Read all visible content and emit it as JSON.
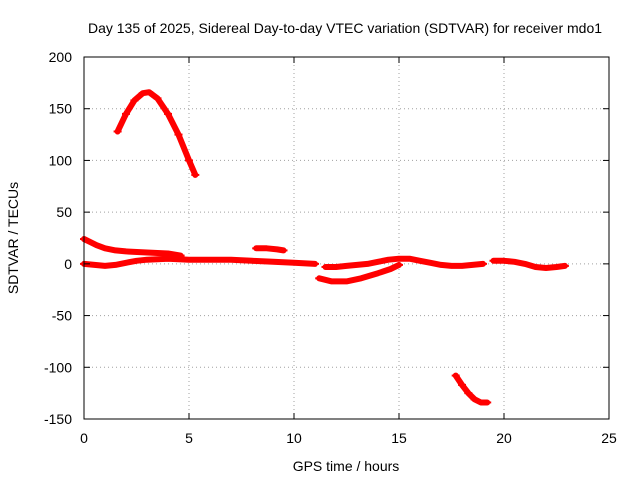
{
  "chart_data": {
    "type": "scatter",
    "title": "Day 135 of 2025, Sidereal Day-to-day VTEC variation (SDTVAR) for receiver mdo1",
    "xlabel": "GPS time / hours",
    "ylabel": "SDTVAR / TECUs",
    "xlim": [
      0,
      25
    ],
    "ylim": [
      -150,
      200
    ],
    "xticks": [
      0,
      5,
      10,
      15,
      20,
      25
    ],
    "yticks": [
      -150,
      -100,
      -50,
      0,
      50,
      100,
      150,
      200
    ],
    "grid": true,
    "legend": "none",
    "color": "#ff0000",
    "series": [
      {
        "name": "arc-1",
        "x": [
          1.6,
          2.0,
          2.4,
          2.8,
          3.1,
          3.5,
          4.0,
          4.5,
          5.0,
          5.3
        ],
        "y": [
          128,
          145,
          158,
          165,
          166,
          160,
          145,
          125,
          100,
          86
        ]
      },
      {
        "name": "arc-2",
        "x": [
          0.0,
          0.3,
          0.6,
          1.0,
          1.5,
          2.0,
          3.0,
          4.0,
          4.6
        ],
        "y": [
          24,
          21,
          18,
          15,
          13,
          12,
          11,
          10,
          8
        ]
      },
      {
        "name": "arc-3",
        "x": [
          0.0,
          0.5,
          1.0,
          1.5,
          2.0,
          2.5,
          3.0,
          4.0,
          5.0,
          6.0,
          7.0,
          8.0,
          9.0,
          10.0,
          11.0
        ],
        "y": [
          0,
          -1,
          -2,
          -1,
          1,
          3,
          4,
          5,
          4,
          4,
          4,
          3,
          2,
          1,
          0
        ]
      },
      {
        "name": "arc-4",
        "x": [
          8.2,
          8.7,
          9.2,
          9.5
        ],
        "y": [
          15,
          15,
          14,
          13
        ]
      },
      {
        "name": "arc-5",
        "x": [
          11.2,
          11.8,
          12.5,
          13.2,
          14.0,
          14.6,
          15.0
        ],
        "y": [
          -14,
          -17,
          -17,
          -14,
          -9,
          -5,
          -1
        ]
      },
      {
        "name": "arc-6",
        "x": [
          11.5,
          12.0,
          12.5,
          13.0,
          13.5,
          14.0,
          14.5,
          15.0,
          15.5,
          16.0,
          16.5,
          17.0,
          17.5,
          18.0,
          18.5,
          19.0
        ],
        "y": [
          -3,
          -3,
          -2,
          -1,
          0,
          2,
          4,
          5,
          5,
          3,
          1,
          -1,
          -2,
          -2,
          -1,
          0
        ]
      },
      {
        "name": "arc-7",
        "x": [
          19.5,
          20.0,
          20.5,
          21.0,
          21.5,
          22.0,
          22.5,
          22.9
        ],
        "y": [
          3,
          3,
          2,
          0,
          -3,
          -4,
          -3,
          -2
        ]
      },
      {
        "name": "arc-8",
        "x": [
          17.7,
          18.0,
          18.3,
          18.6,
          18.9,
          19.2
        ],
        "y": [
          -108,
          -117,
          -125,
          -131,
          -134,
          -134
        ]
      }
    ]
  }
}
